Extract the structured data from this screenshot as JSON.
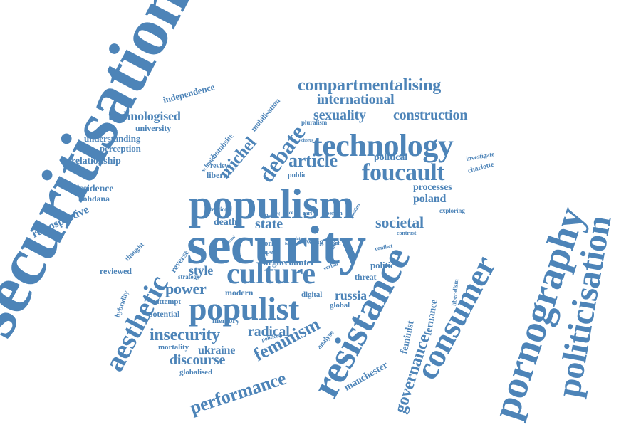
{
  "words": [
    "securitisation",
    "security",
    "populism",
    "resistance",
    "pornography",
    "consumer",
    "politicisation",
    "technology",
    "populist",
    "culture",
    "aesthetic",
    "foucault",
    "debate",
    "compartmentalising",
    "article",
    "feminism",
    "michel",
    "insecurity",
    "performance",
    "governance",
    "international",
    "sexuality",
    "construction",
    "societal",
    "power",
    "technologised",
    "state",
    "discourse",
    "radical",
    "russia",
    "ukraine",
    "poland",
    "style",
    "retrospective",
    "manchester",
    "feminist",
    "fernance",
    "processes",
    "political",
    "relationship",
    "dissidence",
    "understanding",
    "perception",
    "university",
    "independence",
    "mobilisation",
    "bombsite",
    "schmitt",
    "review",
    "liberal",
    "bohdana",
    "reviewed",
    "attempt",
    "potential",
    "memory",
    "mortality",
    "globalised",
    "modern",
    "argue",
    "counter",
    "politic",
    "threat",
    "global",
    "digital",
    "analyse",
    "crisis",
    "wing",
    "death",
    "reverse",
    "strategy",
    "thought",
    "hybridity",
    "exploring",
    "contrast",
    "conflict",
    "liberalism",
    "investigate",
    "charlotte",
    "public",
    "attention",
    "theory",
    "face",
    "carl",
    "person",
    "position",
    "world",
    "paper",
    "verbal",
    "heath",
    "politicise",
    "sexual",
    "pluralism",
    "chorus",
    "laten",
    "fears",
    "new"
  ]
}
